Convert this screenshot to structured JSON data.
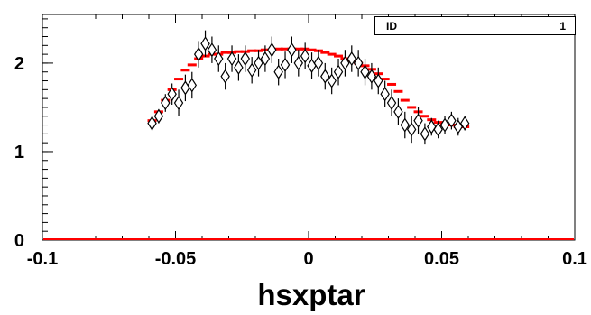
{
  "chart_data": {
    "type": "scatter",
    "title": "",
    "xlabel": "hsxptar",
    "ylabel": "",
    "xlim": [
      -0.1,
      0.1
    ],
    "ylim": [
      0,
      2.55
    ],
    "x_ticks": [
      "-0.1",
      "-0.05",
      "0",
      "0.05",
      "0.1"
    ],
    "y_ticks": [
      "0",
      "1",
      "2"
    ],
    "grid": false,
    "stats": {
      "label": "ID",
      "value": "1"
    },
    "series": [
      {
        "style": "diamond markers with vertical error bars",
        "color": "#000000",
        "x": [
          -0.0588,
          -0.0563,
          -0.0538,
          -0.0513,
          -0.0488,
          -0.0463,
          -0.0438,
          -0.0413,
          -0.0388,
          -0.0363,
          -0.0338,
          -0.0313,
          -0.0288,
          -0.0263,
          -0.0238,
          -0.0213,
          -0.0188,
          -0.0163,
          -0.0138,
          -0.0113,
          -0.0088,
          -0.0063,
          -0.0038,
          -0.0013,
          0.0012,
          0.0037,
          0.0062,
          0.0087,
          0.0112,
          0.0137,
          0.0162,
          0.0187,
          0.0212,
          0.0237,
          0.0262,
          0.0287,
          0.0312,
          0.0337,
          0.0362,
          0.0387,
          0.0412,
          0.0437,
          0.0462,
          0.0487,
          0.0512,
          0.0537,
          0.0562,
          0.0587
        ],
        "y": [
          1.32,
          1.4,
          1.55,
          1.65,
          1.55,
          1.72,
          1.75,
          2.1,
          2.22,
          2.15,
          2.05,
          1.85,
          2.05,
          1.95,
          2.05,
          1.92,
          2.0,
          2.05,
          2.15,
          1.9,
          1.98,
          2.15,
          2.0,
          2.08,
          1.97,
          2.0,
          1.85,
          1.8,
          1.9,
          2.0,
          2.05,
          2.0,
          1.9,
          1.85,
          1.8,
          1.65,
          1.55,
          1.45,
          1.3,
          1.25,
          1.35,
          1.2,
          1.28,
          1.25,
          1.3,
          1.35,
          1.28,
          1.32
        ],
        "yerr": [
          0.08,
          0.08,
          0.1,
          0.12,
          0.15,
          0.15,
          0.15,
          0.15,
          0.15,
          0.15,
          0.15,
          0.15,
          0.15,
          0.15,
          0.15,
          0.15,
          0.15,
          0.15,
          0.15,
          0.15,
          0.15,
          0.15,
          0.15,
          0.15,
          0.15,
          0.15,
          0.15,
          0.15,
          0.15,
          0.15,
          0.15,
          0.15,
          0.15,
          0.15,
          0.15,
          0.15,
          0.15,
          0.15,
          0.15,
          0.15,
          0.15,
          0.12,
          0.1,
          0.1,
          0.1,
          0.1,
          0.1,
          0.08
        ]
      },
      {
        "style": "horizontal bin markers",
        "color": "#ff0000",
        "x": [
          -0.0588,
          -0.0563,
          -0.0538,
          -0.0513,
          -0.0488,
          -0.0463,
          -0.0438,
          -0.0413,
          -0.0388,
          -0.0363,
          -0.0338,
          -0.0313,
          -0.0288,
          -0.0263,
          -0.0238,
          -0.0213,
          -0.0188,
          -0.0163,
          -0.0138,
          -0.0113,
          -0.0088,
          -0.0063,
          -0.0038,
          -0.0013,
          0.0012,
          0.0037,
          0.0062,
          0.0087,
          0.0112,
          0.0137,
          0.0162,
          0.0187,
          0.0212,
          0.0237,
          0.0262,
          0.0287,
          0.0312,
          0.0337,
          0.0362,
          0.0387,
          0.0412,
          0.0437,
          0.0462,
          0.0487,
          0.0512,
          0.0537,
          0.0562,
          0.0587
        ],
        "y": [
          1.35,
          1.45,
          1.58,
          1.7,
          1.82,
          1.92,
          1.98,
          2.05,
          2.08,
          2.1,
          2.1,
          2.12,
          2.12,
          2.13,
          2.13,
          2.14,
          2.14,
          2.15,
          2.15,
          2.16,
          2.16,
          2.16,
          2.16,
          2.16,
          2.15,
          2.14,
          2.12,
          2.1,
          2.08,
          2.05,
          2.03,
          2.0,
          1.97,
          1.93,
          1.88,
          1.82,
          1.76,
          1.68,
          1.58,
          1.5,
          1.45,
          1.4,
          1.36,
          1.33,
          1.3,
          1.3,
          1.28,
          1.28
        ]
      }
    ]
  }
}
